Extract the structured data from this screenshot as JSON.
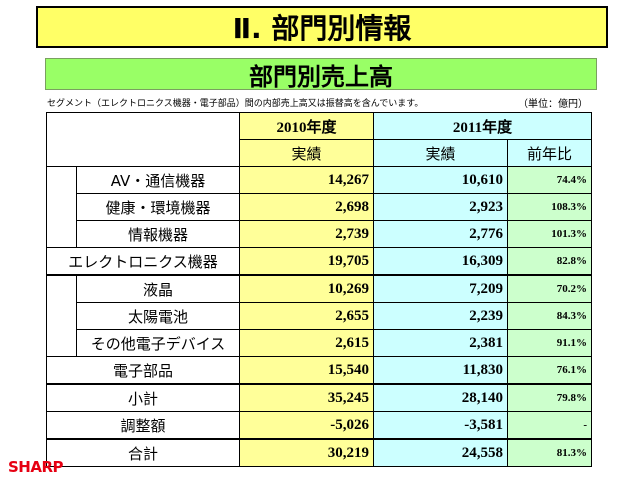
{
  "title": "Ⅱ. 部門別情報",
  "subtitle": "部門別売上高",
  "note": "セグメント（エレクトロニクス機器・電子部品）間の内部売上高又は振替高を含んでいます。",
  "unit": "（単位：億円）",
  "header": {
    "year1": "2010年度",
    "year2": "2011年度",
    "actual1": "実績",
    "actual2": "実績",
    "yoy": "前年比"
  },
  "rows": [
    {
      "label": "AV・通信機器",
      "v2010": "14,267",
      "v2011": "10,610",
      "yoy": "74.4%"
    },
    {
      "label": "健康・環境機器",
      "v2010": "2,698",
      "v2011": "2,923",
      "yoy": "108.3%"
    },
    {
      "label": "情報機器",
      "v2010": "2,739",
      "v2011": "2,776",
      "yoy": "101.3%"
    },
    {
      "label": "エレクトロニクス機器",
      "v2010": "19,705",
      "v2011": "16,309",
      "yoy": "82.8%"
    },
    {
      "label": "液晶",
      "v2010": "10,269",
      "v2011": "7,209",
      "yoy": "70.2%"
    },
    {
      "label": "太陽電池",
      "v2010": "2,655",
      "v2011": "2,239",
      "yoy": "84.3%"
    },
    {
      "label": "その他電子デバイス",
      "v2010": "2,615",
      "v2011": "2,381",
      "yoy": "91.1%"
    },
    {
      "label": "電子部品",
      "v2010": "15,540",
      "v2011": "11,830",
      "yoy": "76.1%"
    },
    {
      "label": "小計",
      "v2010": "35,245",
      "v2011": "28,140",
      "yoy": "79.8%"
    },
    {
      "label": "調整額",
      "v2010": "-5,026",
      "v2011": "-3,581",
      "yoy": "-"
    },
    {
      "label": "合計",
      "v2010": "30,219",
      "v2011": "24,558",
      "yoy": "81.3%"
    }
  ],
  "logo": "SHARP",
  "colors": {
    "title_bg": "#ffff66",
    "subtitle_bg": "#99ff66",
    "col2010_bg": "#ffff99",
    "col2011_bg": "#ccffff",
    "yoy_bg": "#ccffcc",
    "logo": "#e60012"
  }
}
